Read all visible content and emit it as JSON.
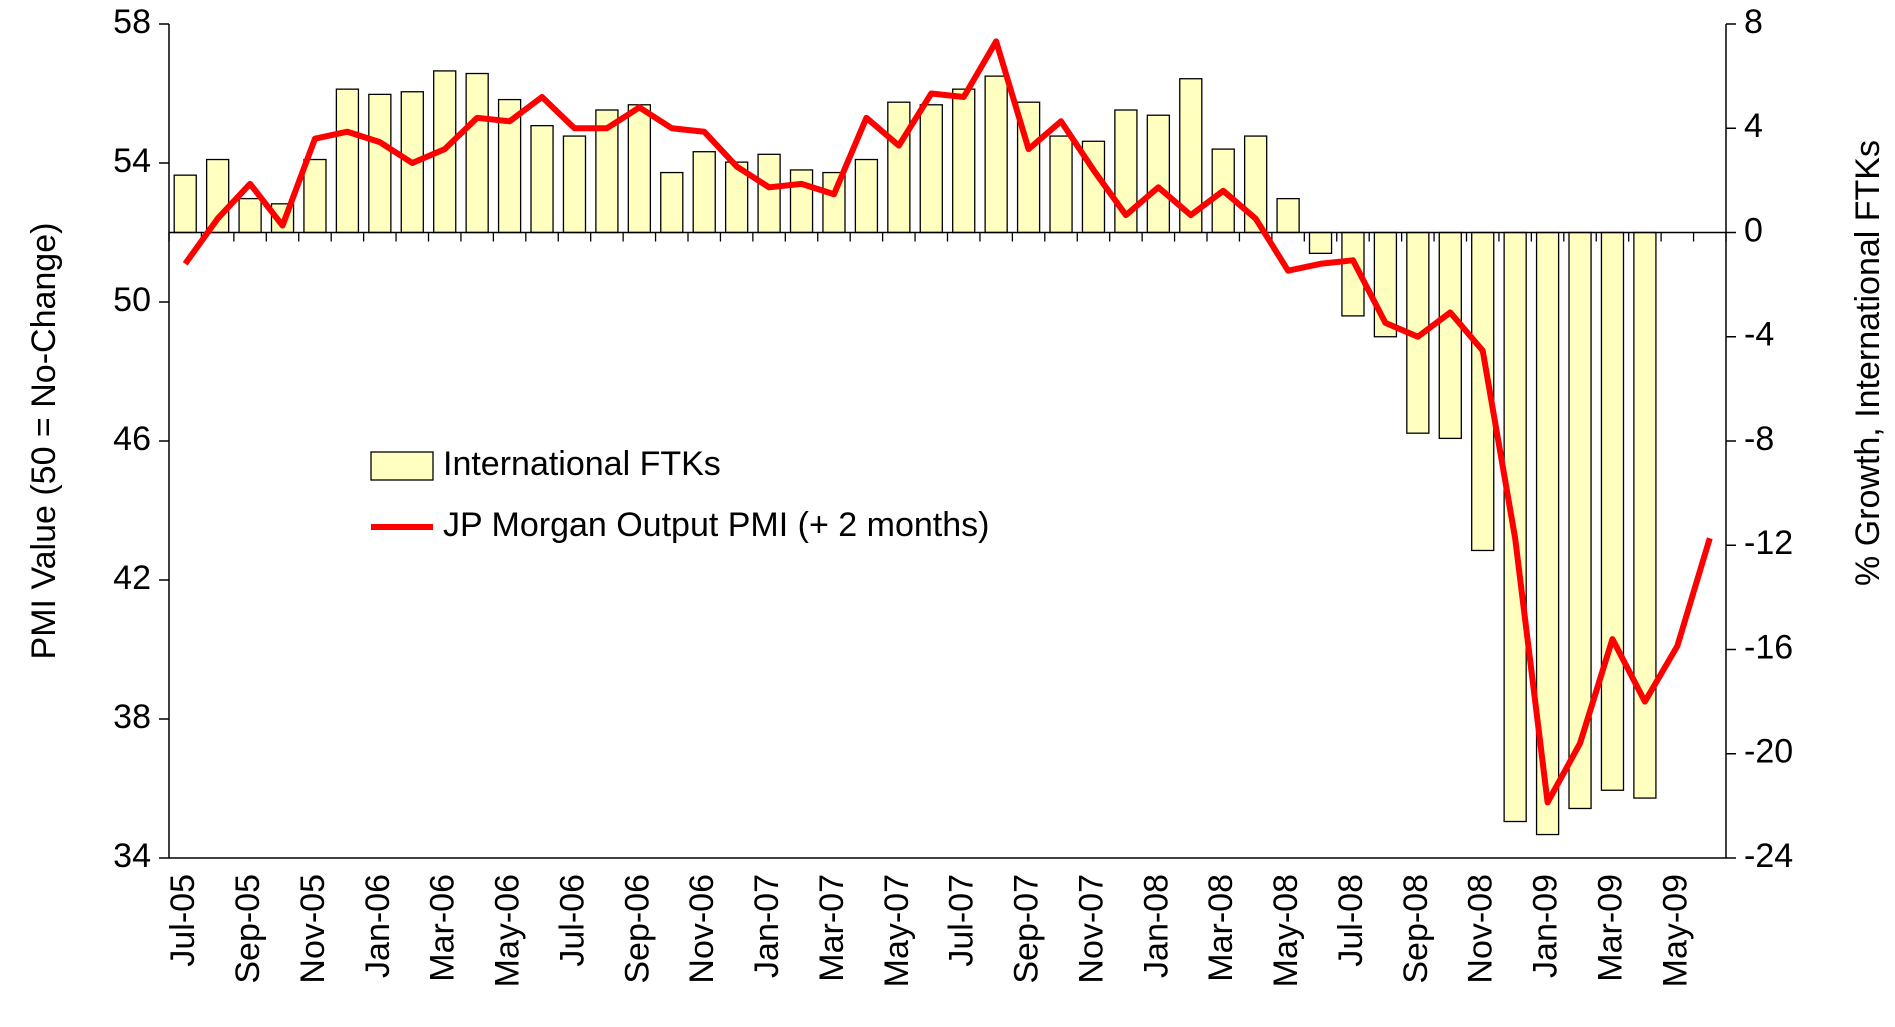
{
  "chart_data": {
    "type": "bar",
    "y_label": "PMI Value (50 = No-Change)",
    "y2_label": "% Growth, International FTKs",
    "categories": [
      "Jul-05",
      null,
      "Sep-05",
      null,
      "Nov-05",
      null,
      "Jan-06",
      null,
      "Mar-06",
      null,
      "May-06",
      null,
      "Jul-06",
      null,
      "Sep-06",
      null,
      "Nov-06",
      null,
      "Jan-07",
      null,
      "Mar-07",
      null,
      "May-07",
      null,
      "Jul-07",
      null,
      "Sep-07",
      null,
      "Nov-07",
      null,
      "Jan-08",
      null,
      "Mar-08",
      null,
      "May-08",
      null,
      "Jul-08",
      null,
      "Sep-08",
      null,
      "Nov-08",
      null,
      "Jan-09",
      null,
      "Mar-09",
      null,
      "May-09",
      null
    ],
    "series": [
      {
        "name": "International FTKs",
        "type": "bar",
        "axis": "y2",
        "color": "#ffffc0",
        "values": [
          2.2,
          2.8,
          1.3,
          1.1,
          2.8,
          5.5,
          5.3,
          5.4,
          6.2,
          6.1,
          5.1,
          4.1,
          3.7,
          4.7,
          4.9,
          2.3,
          3.1,
          2.7,
          3.0,
          2.4,
          2.3,
          2.8,
          5.0,
          4.9,
          5.5,
          6.0,
          5.0,
          3.7,
          3.5,
          4.7,
          4.5,
          5.9,
          3.2,
          3.7,
          1.3,
          -0.8,
          -3.2,
          -4.0,
          -7.7,
          -7.9,
          -12.2,
          -22.6,
          -23.1,
          -22.1,
          -21.4,
          -21.7,
          null,
          null
        ]
      },
      {
        "name": "JP Morgan Output PMI (+ 2 months)",
        "type": "line",
        "axis": "y",
        "color": "#ff0000",
        "values": [
          51.1,
          52.4,
          53.4,
          52.2,
          54.7,
          54.9,
          54.6,
          54.0,
          54.4,
          55.3,
          55.2,
          55.9,
          55.0,
          55.0,
          55.6,
          55.0,
          54.9,
          53.9,
          53.3,
          53.4,
          53.1,
          55.3,
          54.5,
          56.0,
          55.9,
          57.5,
          54.4,
          55.2,
          53.8,
          52.5,
          53.3,
          52.5,
          53.2,
          52.4,
          50.9,
          51.1,
          51.2,
          49.4,
          49.0,
          49.7,
          48.6,
          43.2,
          35.6,
          37.3,
          40.3,
          38.5,
          40.1,
          43.2
        ]
      }
    ],
    "ylim": [
      34,
      58
    ],
    "yticks": [
      34,
      38,
      42,
      46,
      50,
      54,
      58
    ],
    "y2lim": [
      -24,
      8
    ],
    "y2ticks": [
      -24,
      -20,
      -16,
      -12,
      -8,
      -4,
      0,
      4,
      8
    ]
  }
}
